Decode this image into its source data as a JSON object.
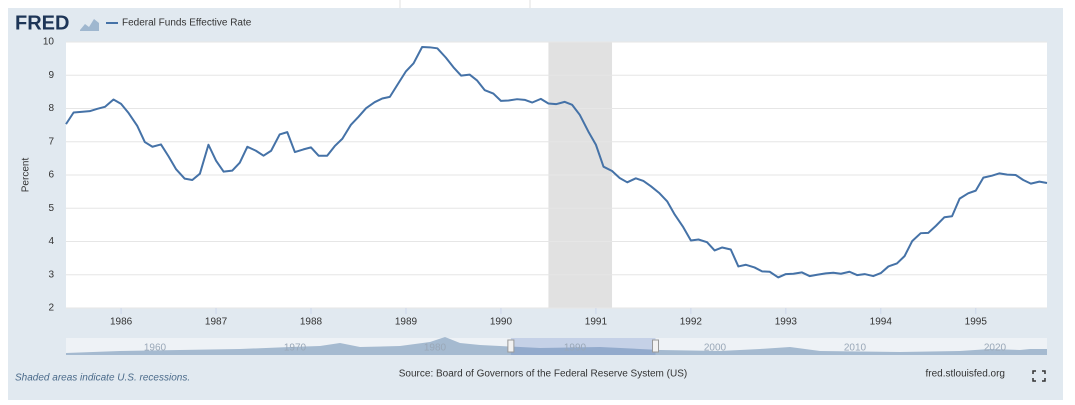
{
  "chart_data": {
    "type": "line",
    "logo": "FRED",
    "ylabel": "Percent",
    "note": "Shaded areas indicate U.S. recessions.",
    "source": "Source: Board of Governors of the Federal Reserve System (US)",
    "site": "fred.stlouisfed.org",
    "x": [
      1985.42,
      1985.5,
      1985.58,
      1985.67,
      1985.75,
      1985.83,
      1985.92,
      1986.0,
      1986.08,
      1986.17,
      1986.25,
      1986.33,
      1986.42,
      1986.5,
      1986.58,
      1986.67,
      1986.75,
      1986.83,
      1986.92,
      1987.0,
      1987.08,
      1987.17,
      1987.25,
      1987.33,
      1987.42,
      1987.5,
      1987.58,
      1987.67,
      1987.75,
      1987.83,
      1987.92,
      1988.0,
      1988.08,
      1988.17,
      1988.25,
      1988.33,
      1988.42,
      1988.5,
      1988.58,
      1988.67,
      1988.75,
      1988.83,
      1988.92,
      1989.0,
      1989.08,
      1989.17,
      1989.25,
      1989.33,
      1989.42,
      1989.5,
      1989.58,
      1989.67,
      1989.75,
      1989.83,
      1989.92,
      1990.0,
      1990.08,
      1990.17,
      1990.25,
      1990.33,
      1990.42,
      1990.5,
      1990.58,
      1990.67,
      1990.75,
      1990.83,
      1990.92,
      1991.0,
      1991.08,
      1991.17,
      1991.25,
      1991.33,
      1991.42,
      1991.5,
      1991.58,
      1991.67,
      1991.75,
      1991.83,
      1991.92,
      1992.0,
      1992.08,
      1992.17,
      1992.25,
      1992.33,
      1992.42,
      1992.5,
      1992.58,
      1992.67,
      1992.75,
      1992.83,
      1992.92,
      1993.0,
      1993.08,
      1993.17,
      1993.25,
      1993.33,
      1993.42,
      1993.5,
      1993.58,
      1993.67,
      1993.75,
      1993.83,
      1993.92,
      1994.0,
      1994.08,
      1994.17,
      1994.25,
      1994.33,
      1994.42,
      1994.5,
      1994.58,
      1994.67,
      1994.75,
      1994.83,
      1994.92,
      1995.0,
      1995.08,
      1995.17,
      1995.25,
      1995.33,
      1995.42,
      1995.5,
      1995.58,
      1995.67,
      1995.75
    ],
    "series": [
      {
        "name": "Federal Funds Effective Rate",
        "color": "#4572a7",
        "values": [
          7.53,
          7.88,
          7.9,
          7.92,
          7.99,
          8.05,
          8.27,
          8.14,
          7.86,
          7.48,
          6.99,
          6.85,
          6.92,
          6.56,
          6.17,
          5.89,
          5.85,
          6.04,
          6.91,
          6.43,
          6.1,
          6.13,
          6.37,
          6.85,
          6.73,
          6.58,
          6.73,
          7.22,
          7.29,
          6.69,
          6.77,
          6.83,
          6.58,
          6.58,
          6.87,
          7.09,
          7.51,
          7.75,
          8.01,
          8.19,
          8.3,
          8.35,
          8.76,
          9.12,
          9.36,
          9.85,
          9.84,
          9.81,
          9.53,
          9.24,
          8.99,
          9.02,
          8.84,
          8.55,
          8.45,
          8.23,
          8.24,
          8.28,
          8.26,
          8.18,
          8.29,
          8.15,
          8.13,
          8.2,
          8.11,
          7.81,
          7.31,
          6.91,
          6.25,
          6.12,
          5.91,
          5.78,
          5.9,
          5.82,
          5.66,
          5.45,
          5.21,
          4.81,
          4.43,
          4.03,
          4.06,
          3.98,
          3.73,
          3.82,
          3.76,
          3.25,
          3.3,
          3.22,
          3.1,
          3.09,
          2.92,
          3.02,
          3.03,
          3.07,
          2.96,
          3.0,
          3.04,
          3.06,
          3.03,
          3.09,
          2.99,
          3.02,
          2.96,
          3.05,
          3.25,
          3.34,
          3.56,
          4.01,
          4.25,
          4.26,
          4.47,
          4.73,
          4.76,
          5.29,
          5.45,
          5.53,
          5.92,
          5.98,
          6.05,
          6.01,
          6.0,
          5.85,
          5.74,
          5.8,
          5.76
        ]
      }
    ],
    "recessions": [
      [
        1990.5,
        1991.17
      ]
    ],
    "xlim": [
      1985.42,
      1995.75
    ],
    "xticks": [
      1986,
      1987,
      1988,
      1989,
      1990,
      1991,
      1992,
      1993,
      1994,
      1995
    ],
    "ylim": [
      2,
      10
    ],
    "yticks": [
      2,
      3,
      4,
      5,
      6,
      7,
      8,
      9,
      10
    ],
    "grid": true,
    "navigator_xticks": [
      1960,
      1970,
      1980,
      1990,
      2000,
      2010,
      2020
    ]
  }
}
